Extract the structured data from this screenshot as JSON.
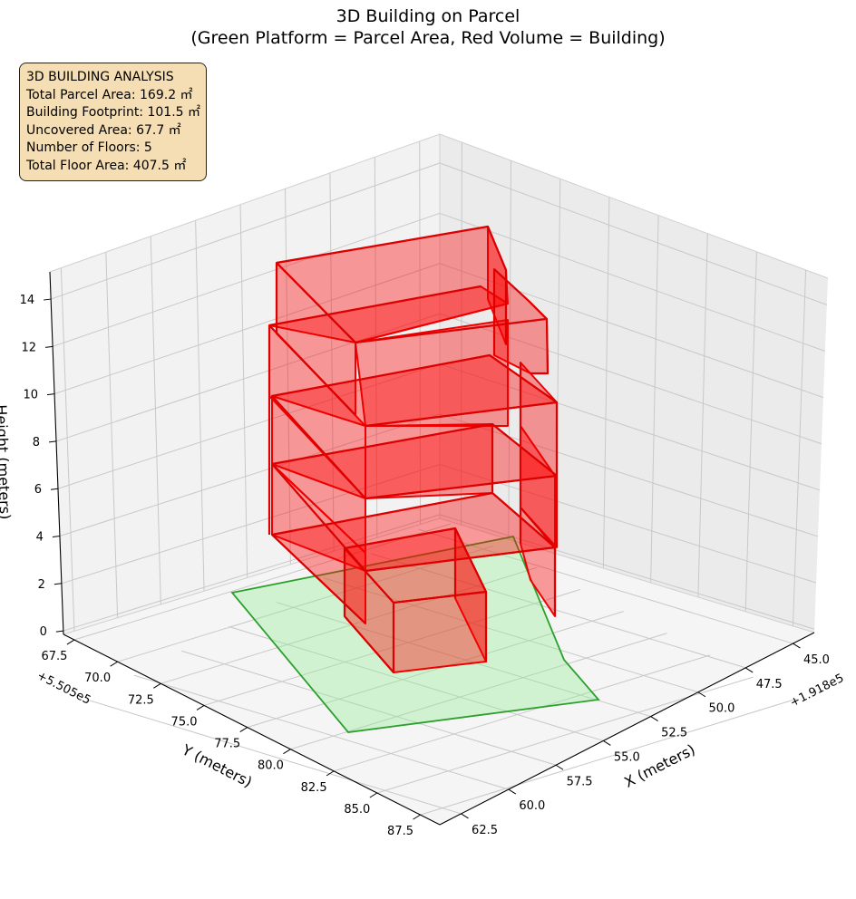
{
  "chart_data": {
    "type": "3d-polygon",
    "title": "3D Building on Parcel",
    "subtitle": "(Green Platform = Parcel Area, Red Volume = Building)",
    "xlabel": "X (meters)",
    "ylabel": "Y (meters)",
    "zlabel": "Height (meters)",
    "x_offset_label": "+1.918e5",
    "y_offset_label": "+5.505e5",
    "x_ticks": [
      "45.0",
      "47.5",
      "50.0",
      "52.5",
      "55.0",
      "57.5",
      "60.0",
      "62.5"
    ],
    "y_ticks": [
      "67.5",
      "70.0",
      "72.5",
      "75.0",
      "77.5",
      "80.0",
      "82.5",
      "85.0",
      "87.5"
    ],
    "z_ticks": [
      "0",
      "2",
      "4",
      "6",
      "8",
      "10",
      "12",
      "14"
    ],
    "parcel_color": "#90ee90",
    "parcel_edge_color": "#2ca02c",
    "building_color": "#ff0000",
    "grid": true
  },
  "info": {
    "heading": "3D BUILDING ANALYSIS",
    "parcel_area": "Total Parcel Area: 169.2 ㎡",
    "footprint": "Building Footprint: 101.5 ㎡",
    "uncovered": "Uncovered Area: 67.7 ㎡",
    "floors": "Number of Floors: 5",
    "floor_area": "Total Floor Area: 407.5 ㎡"
  }
}
